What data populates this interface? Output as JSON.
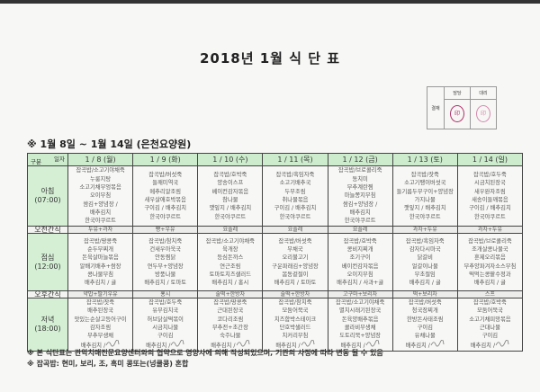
{
  "title": "2018년 1월 식 단 표",
  "approval": {
    "label": "결재",
    "columns": [
      "담당",
      "대리"
    ],
    "stamps": [
      "印",
      "印"
    ]
  },
  "period": "※ 1월 8일 ~ 1월 14일 (은천요양원)",
  "table": {
    "corner_top": "일자",
    "corner_bottom": "구분",
    "days": [
      "1 / 8 (월)",
      "1 / 9 (화)",
      "1 / 10 (수)",
      "1 / 11 (목)",
      "1 / 12 (금)",
      "1 / 13 (토)",
      "1 / 14 (일)"
    ],
    "rows": [
      {
        "label": "아침",
        "time": "(07:00)",
        "type": "meal",
        "cells": [
          [
            "잡곡밥/소고기야채죽",
            "누룽지탕",
            "소고기채무엉볶음",
            "오이무침",
            "쌈김+양념장 /",
            "배추김치",
            "한국야쿠르트"
          ],
          [
            "잡곡밥/버섯죽",
            "들깨미역국",
            "메추리알조림",
            "새우살애호박볶음",
            "구이김 / 배추김치",
            "한국야쿠르트"
          ],
          [
            "잡곡밥/호박죽",
            "양송이스프",
            "베이컨감자볶음",
            "참나물",
            "깻잎지 / 배추김치",
            "한국야쿠르트"
          ],
          [
            "잡곡밥/흑임자죽",
            "소고기배추국",
            "두부조림",
            "취나물볶음",
            "구이김 / 배추김치",
            "한국야쿠르트"
          ],
          [
            "잡곡밥/브로콜리죽",
            "동치미",
            "부추계란찜",
            "마늘쫑지무침",
            "쌈김+양념장 /",
            "배추김치",
            "한국야쿠르트"
          ],
          [
            "잡곡밥/잣죽",
            "소고기팽이버섯국",
            "들기름두부구이+양념장",
            "가지나물",
            "깻잎지 / 배추김치",
            "한국야쿠르트"
          ],
          [
            "잡곡밥/호두죽",
            "시금치된장국",
            "새우완자조림",
            "새송이들깨볶음",
            "구이김 / 배추김치",
            "한국야쿠르트"
          ]
        ]
      },
      {
        "label": "오전간식",
        "type": "snack",
        "cells": [
          "두유+과자",
          "빵+우유",
          "요플레",
          "요플레",
          "요플레",
          "과자+두유",
          "과자+두유"
        ]
      },
      {
        "label": "점심",
        "time": "(12:00)",
        "type": "meal",
        "cells": [
          [
            "잡곡밥/땅콩죽",
            "순두부찌개",
            "돈육살마늘볶음",
            "알배기배추+쌈장",
            "콩나물무침",
            "배추김치 / 귤"
          ],
          [
            "잡곡밥/참치죽",
            "건새우아욱국",
            "안동찜닭",
            "연두부+양념장",
            "방풍나물",
            "배추김치 / 토마토"
          ],
          [
            "잡곡밥/소고기야채죽",
            "육개장",
            "등심돈까스",
            "연근조림",
            "토마토치즈샐러드",
            "배추김치 / 홍시"
          ],
          [
            "잡곡밥/버섯죽",
            "무채국",
            "오리불고기",
            "구운파래김+양념장",
            "봄동겉절이",
            "배추김치 / 토마토"
          ],
          [
            "잡곡밥/호박죽",
            "콩비지찌개",
            "조기구이",
            "베이컨감자볶음",
            "오이지무침",
            "배추김치 / 사과+귤"
          ],
          [
            "잡곡밥/흑임자죽",
            "감자다시마국",
            "닭갈비",
            "얼갈이나물",
            "무초절임",
            "배추김치 / 귤"
          ],
          [
            "잡곡밥/브로콜리죽",
            "조개살콩나물국",
            "훈제오리볶음",
            "부추양파겨자소스무침",
            "떡먹는콩팥수정과",
            "배추김치 / 귤"
          ]
        ]
      },
      {
        "label": "오후간식",
        "type": "snack",
        "cells": [
          "약밥+딸기우유",
          "홍시",
          "술떡+한방차",
          "술떡+한방차",
          "고구마+보리차",
          "떡+보리차",
          "스프"
        ]
      },
      {
        "label": "저녁",
        "time": "(18:00)",
        "type": "meal",
        "cells": [
          [
            "잡곡밥/잣죽",
            "배추된장국",
            "맛있는순살고등어구이",
            "감자조림",
            "부추무생채",
            "배추김치 /"
          ],
          [
            "잡곡밥/호두죽",
            "유부김치국",
            "허브닭살떡볶이",
            "시금치나물",
            "구이김",
            "배추김치 /"
          ],
          [
            "잡곡밥/땅콩죽",
            "근대된장국",
            "코다리조림",
            "부추전+초간장",
            "숙주나물",
            "배추김치 /"
          ],
          [
            "잡곡밥/참치죽",
            "모둠어묵국",
            "치즈함박스테이크",
            "단호박샐러드",
            "치커리무침",
            "배추김치 /"
          ],
          [
            "잡곡밥/소고기야채죽",
            "멸치시래기된장국",
            "돈육양배추볶음",
            "콜라비무생채",
            "도토리묵+양념장",
            "배추김치 /"
          ],
          [
            "잡곡밥/버섯죽",
            "청국장찌개",
            "한방돈사태조림",
            "구이김",
            "유채나물",
            "배추김치 /"
          ],
          [
            "잡곡밥/호박죽",
            "모둠어묵국",
            "소고기채피망볶음",
            "근대나물",
            "구이김",
            "배추김치 /"
          ]
        ]
      }
    ]
  },
  "notes": [
    "※ 본 식단표는 관악치매전문요양센터와의 협약으로 영양사에 의해 작성되었으며, 기관의 사정에 따라 변동 될 수 있음",
    "※ 잡곡밥: 현미, 보리, 조, 흑미 콩또는(넝쿨콩) 혼합"
  ],
  "colors": {
    "header_green": "#cdeccd",
    "label_green": "#d4efd4",
    "stamp_red": "#b0306a"
  }
}
